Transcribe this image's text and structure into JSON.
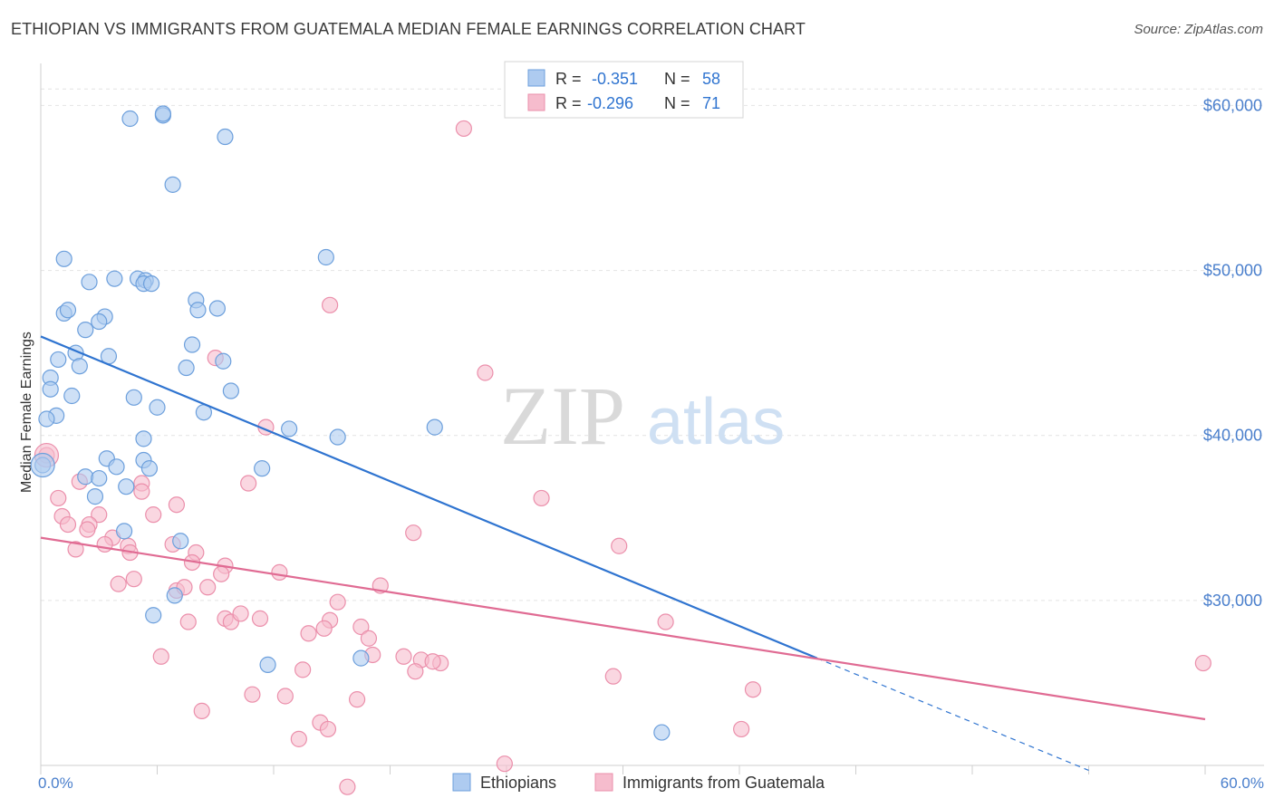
{
  "title": "ETHIOPIAN VS IMMIGRANTS FROM GUATEMALA MEDIAN FEMALE EARNINGS CORRELATION CHART",
  "source": "Source: ZipAtlas.com",
  "watermark": {
    "part1": "ZIP",
    "part2": "atlas"
  },
  "colors": {
    "blue_fill": "#aecbf0",
    "blue_stroke": "#6c9fdc",
    "blue_line": "#2f74d0",
    "pink_fill": "#f6bccd",
    "pink_stroke": "#eb8fab",
    "pink_line": "#e06b93",
    "axis_label": "#4a7fcc",
    "grid": "#e4e4e4"
  },
  "legend": {
    "series1": {
      "r_label": "R = ",
      "r_value": "-0.351",
      "n_label": "N = ",
      "n_value": "58"
    },
    "series2": {
      "r_label": "R = ",
      "r_value": "-0.296",
      "n_label": "N = ",
      "n_value": "71"
    }
  },
  "bottom_legend": [
    "Ethiopians",
    "Immigrants from Guatemala"
  ],
  "chart_data": {
    "type": "scatter",
    "title": "ETHIOPIAN VS IMMIGRANTS FROM GUATEMALA MEDIAN FEMALE EARNINGS CORRELATION CHART",
    "xlabel": "",
    "ylabel": "Median Female Earnings",
    "xlim": [
      0,
      60
    ],
    "ylim": [
      20000,
      62000
    ],
    "x_tick_labels": [
      "0.0%",
      "60.0%"
    ],
    "y_ticks": [
      30000,
      40000,
      50000,
      60000
    ],
    "y_tick_labels": [
      "$30,000",
      "$40,000",
      "$50,000",
      "$60,000"
    ],
    "grid": true,
    "legend_placement": "top-center",
    "series": [
      {
        "name": "Ethiopians",
        "r": -0.351,
        "n": 58,
        "trend": {
          "x0": 0,
          "y0": 46000,
          "x1": 40,
          "y1": 26500,
          "dashed_to_x": 54,
          "dashed_to_y": 19700
        },
        "points": [
          [
            6.3,
            59.4
          ],
          [
            6.3,
            59.5
          ],
          [
            4.6,
            59.2
          ],
          [
            9.5,
            58.1
          ],
          [
            6.8,
            55.2
          ],
          [
            1.2,
            50.7
          ],
          [
            14.7,
            50.8
          ],
          [
            3.8,
            49.5
          ],
          [
            5.0,
            49.5
          ],
          [
            5.4,
            49.4
          ],
          [
            5.3,
            49.2
          ],
          [
            2.5,
            49.3
          ],
          [
            5.7,
            49.2
          ],
          [
            8.0,
            48.2
          ],
          [
            1.2,
            47.4
          ],
          [
            1.4,
            47.6
          ],
          [
            9.1,
            47.7
          ],
          [
            8.1,
            47.6
          ],
          [
            3.3,
            47.2
          ],
          [
            3.0,
            46.9
          ],
          [
            2.3,
            46.4
          ],
          [
            7.8,
            45.5
          ],
          [
            1.8,
            45.0
          ],
          [
            3.5,
            44.8
          ],
          [
            0.9,
            44.6
          ],
          [
            9.4,
            44.5
          ],
          [
            7.5,
            44.1
          ],
          [
            2.0,
            44.2
          ],
          [
            0.5,
            43.5
          ],
          [
            0.5,
            42.8
          ],
          [
            1.6,
            42.4
          ],
          [
            4.8,
            42.3
          ],
          [
            9.8,
            42.7
          ],
          [
            6.0,
            41.7
          ],
          [
            8.4,
            41.4
          ],
          [
            0.8,
            41.2
          ],
          [
            0.3,
            41.0
          ],
          [
            12.8,
            40.4
          ],
          [
            20.3,
            40.5
          ],
          [
            15.3,
            39.9
          ],
          [
            5.3,
            39.8
          ],
          [
            0.1,
            38.2
          ],
          [
            3.4,
            38.6
          ],
          [
            5.3,
            38.5
          ],
          [
            3.9,
            38.1
          ],
          [
            5.6,
            38.0
          ],
          [
            11.4,
            38.0
          ],
          [
            2.3,
            37.5
          ],
          [
            3.0,
            37.4
          ],
          [
            4.4,
            36.9
          ],
          [
            2.8,
            36.3
          ],
          [
            4.3,
            34.2
          ],
          [
            7.2,
            33.6
          ],
          [
            6.9,
            30.3
          ],
          [
            5.8,
            29.1
          ],
          [
            11.7,
            26.1
          ],
          [
            16.5,
            26.5
          ],
          [
            32.0,
            22.0
          ]
        ]
      },
      {
        "name": "Immigrants from Guatemala",
        "r": -0.296,
        "n": 71,
        "trend": {
          "x0": 0,
          "y0": 33800,
          "x1": 60,
          "y1": 22800
        },
        "points": [
          [
            21.8,
            58.6
          ],
          [
            14.9,
            47.9
          ],
          [
            22.9,
            43.8
          ],
          [
            9.0,
            44.7
          ],
          [
            11.6,
            40.5
          ],
          [
            0.3,
            38.8
          ],
          [
            10.7,
            37.1
          ],
          [
            5.2,
            37.1
          ],
          [
            2.0,
            37.2
          ],
          [
            5.2,
            36.6
          ],
          [
            0.9,
            36.2
          ],
          [
            25.8,
            36.2
          ],
          [
            7.0,
            35.8
          ],
          [
            3.0,
            35.2
          ],
          [
            1.1,
            35.1
          ],
          [
            5.8,
            35.2
          ],
          [
            1.4,
            34.6
          ],
          [
            2.5,
            34.6
          ],
          [
            2.4,
            34.3
          ],
          [
            3.7,
            33.8
          ],
          [
            19.2,
            34.1
          ],
          [
            3.3,
            33.4
          ],
          [
            4.5,
            33.3
          ],
          [
            1.8,
            33.1
          ],
          [
            6.8,
            33.4
          ],
          [
            8.0,
            32.9
          ],
          [
            29.8,
            33.3
          ],
          [
            4.6,
            32.9
          ],
          [
            9.5,
            32.1
          ],
          [
            7.8,
            32.3
          ],
          [
            12.3,
            31.7
          ],
          [
            9.3,
            31.6
          ],
          [
            4.8,
            31.3
          ],
          [
            4.0,
            31.0
          ],
          [
            7.0,
            30.6
          ],
          [
            7.4,
            30.8
          ],
          [
            8.6,
            30.8
          ],
          [
            17.5,
            30.9
          ],
          [
            15.3,
            29.9
          ],
          [
            11.3,
            28.9
          ],
          [
            9.5,
            28.9
          ],
          [
            9.8,
            28.7
          ],
          [
            7.6,
            28.7
          ],
          [
            10.3,
            29.2
          ],
          [
            14.9,
            28.8
          ],
          [
            32.2,
            28.7
          ],
          [
            16.5,
            28.4
          ],
          [
            14.6,
            28.3
          ],
          [
            13.8,
            28.0
          ],
          [
            16.9,
            27.7
          ],
          [
            17.1,
            26.7
          ],
          [
            18.7,
            26.6
          ],
          [
            19.6,
            26.4
          ],
          [
            20.6,
            26.2
          ],
          [
            20.2,
            26.3
          ],
          [
            6.2,
            26.6
          ],
          [
            13.5,
            25.8
          ],
          [
            19.3,
            25.7
          ],
          [
            29.5,
            25.4
          ],
          [
            59.9,
            26.2
          ],
          [
            10.9,
            24.3
          ],
          [
            12.6,
            24.2
          ],
          [
            16.3,
            24.0
          ],
          [
            36.7,
            24.6
          ],
          [
            8.3,
            23.3
          ],
          [
            14.4,
            22.6
          ],
          [
            14.8,
            22.2
          ],
          [
            36.1,
            22.2
          ],
          [
            13.3,
            21.6
          ],
          [
            23.9,
            20.1
          ],
          [
            15.8,
            18.7
          ]
        ]
      }
    ]
  }
}
